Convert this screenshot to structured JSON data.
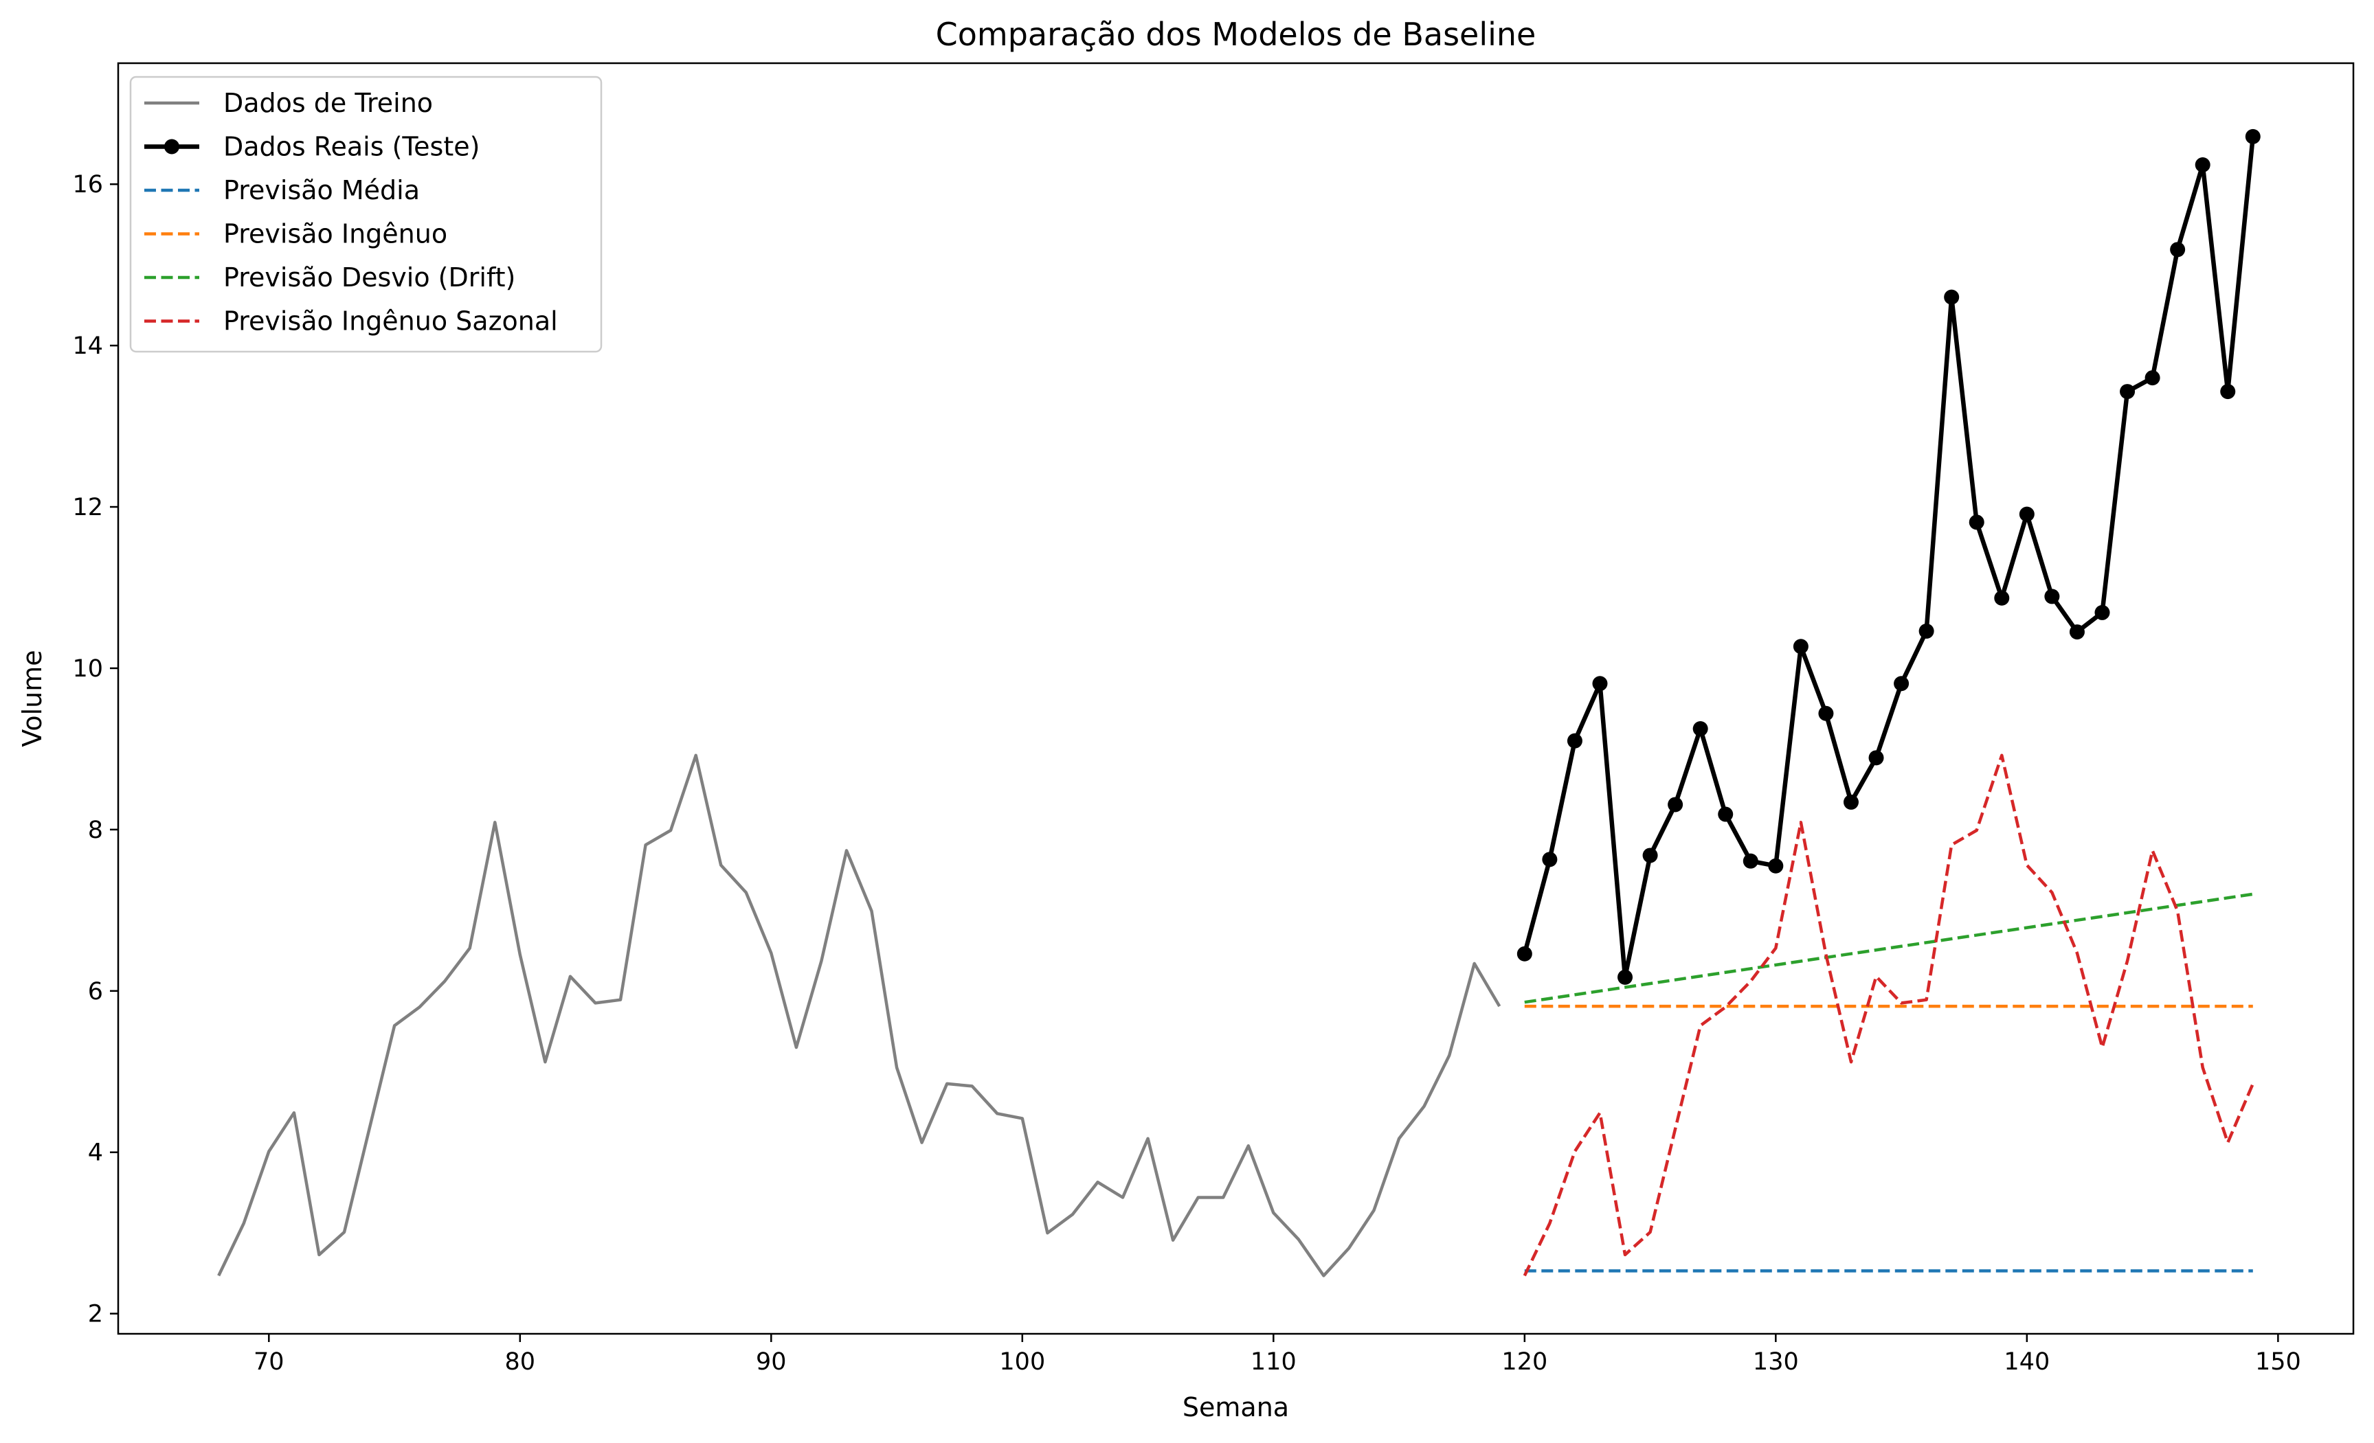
{
  "chart_data": {
    "type": "line",
    "title": "Comparação dos Modelos de Baseline",
    "xlabel": "Semana",
    "ylabel": "Volume",
    "xlim": [
      64,
      153
    ],
    "ylim": [
      1.75,
      17.5
    ],
    "xticks": [
      70,
      80,
      90,
      100,
      110,
      120,
      130,
      140,
      150
    ],
    "yticks": [
      2,
      4,
      6,
      8,
      10,
      12,
      14,
      16
    ],
    "grid": false,
    "legend_position": "top-left",
    "series": [
      {
        "name": "Dados de Treino",
        "color": "#808080",
        "style": "solid",
        "x": [
          68,
          69,
          70,
          71,
          72,
          73,
          74,
          75,
          76,
          77,
          78,
          79,
          80,
          81,
          82,
          83,
          84,
          85,
          86,
          87,
          88,
          89,
          90,
          91,
          92,
          93,
          94,
          95,
          96,
          97,
          98,
          99,
          100,
          101,
          102,
          103,
          104,
          105,
          106,
          107,
          108,
          109,
          110,
          111,
          112,
          113,
          114,
          115,
          116,
          117,
          118,
          119
        ],
        "y": [
          2.47,
          3.12,
          4.01,
          4.49,
          2.73,
          3.01,
          4.29,
          5.57,
          5.8,
          6.12,
          6.53,
          8.09,
          6.45,
          5.12,
          6.18,
          5.85,
          5.89,
          7.81,
          7.99,
          8.92,
          7.56,
          7.22,
          6.47,
          5.3,
          6.37,
          7.74,
          6.99,
          5.05,
          4.12,
          4.85,
          4.82,
          4.48,
          4.42,
          3.0,
          3.23,
          3.63,
          3.44,
          4.17,
          2.91,
          3.44,
          3.44,
          4.08,
          3.25,
          2.92,
          2.47,
          2.81,
          3.28,
          4.17,
          4.57,
          5.2,
          6.34,
          5.81
        ]
      },
      {
        "name": "Dados Reais (Teste)",
        "color": "#000000",
        "style": "solid-markers",
        "x": [
          120,
          121,
          122,
          123,
          124,
          125,
          126,
          127,
          128,
          129,
          130,
          131,
          132,
          133,
          134,
          135,
          136,
          137,
          138,
          139,
          140,
          141,
          142,
          143,
          144,
          145,
          146,
          147,
          148,
          149
        ],
        "y": [
          6.46,
          7.63,
          9.1,
          9.81,
          6.17,
          7.68,
          8.31,
          9.25,
          8.19,
          7.61,
          7.55,
          10.27,
          9.44,
          8.34,
          8.89,
          9.81,
          10.46,
          14.6,
          11.81,
          10.87,
          11.91,
          10.89,
          10.45,
          10.69,
          13.43,
          13.6,
          15.19,
          16.24,
          13.43,
          16.59
        ]
      },
      {
        "name": "Previsão Média",
        "color": "#1f77b4",
        "style": "dashed",
        "x": [
          120,
          149
        ],
        "y": [
          2.53,
          2.53
        ]
      },
      {
        "name": "Previsão Ingênuo",
        "color": "#ff7f0e",
        "style": "dashed",
        "x": [
          120,
          149
        ],
        "y": [
          5.81,
          5.81
        ]
      },
      {
        "name": "Previsão Desvio (Drift)",
        "color": "#2ca02c",
        "style": "dashed",
        "x": [
          120,
          149
        ],
        "y": [
          5.86,
          7.2
        ]
      },
      {
        "name": "Previsão Ingênuo Sazonal",
        "color": "#d62728",
        "style": "dashed",
        "x": [
          120,
          121,
          122,
          123,
          124,
          125,
          126,
          127,
          128,
          129,
          130,
          131,
          132,
          133,
          134,
          135,
          136,
          137,
          138,
          139,
          140,
          141,
          142,
          143,
          144,
          145,
          146,
          147,
          148,
          149
        ],
        "y": [
          2.47,
          3.12,
          4.01,
          4.49,
          2.73,
          3.01,
          4.29,
          5.57,
          5.8,
          6.12,
          6.53,
          8.09,
          6.45,
          5.12,
          6.18,
          5.85,
          5.89,
          7.81,
          7.99,
          8.92,
          7.56,
          7.22,
          6.47,
          5.3,
          6.37,
          7.74,
          6.99,
          5.05,
          4.12,
          4.85
        ]
      }
    ]
  }
}
